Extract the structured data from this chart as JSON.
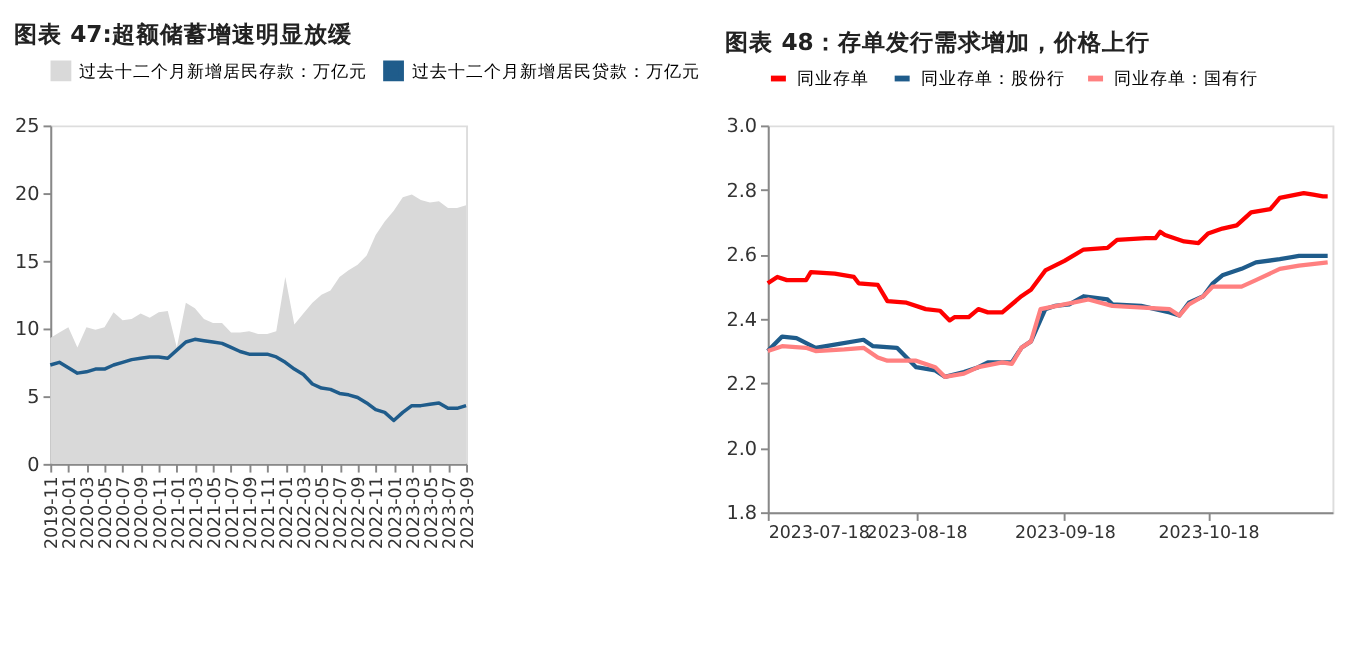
{
  "chart_data": [
    {
      "type": "area",
      "title": "图表 47:超额储蓄增速明显放缓",
      "categories": [
        "2019-11",
        null,
        "2020-01",
        null,
        "2020-03",
        null,
        "2020-05",
        null,
        "2020-07",
        null,
        "2020-09",
        null,
        "2020-11",
        null,
        "2021-01",
        null,
        "2021-03",
        null,
        "2021-05",
        null,
        "2021-07",
        null,
        "2021-09",
        null,
        "2021-11",
        null,
        "2022-01",
        null,
        "2022-03",
        null,
        "2022-05",
        null,
        "2022-07",
        null,
        "2022-09",
        null,
        "2022-11",
        null,
        "2023-01",
        null,
        "2023-03",
        null,
        "2023-05",
        null,
        "2023-07",
        null,
        "2023-09"
      ],
      "series": [
        {
          "name": "过去十二个月新增居民存款：万亿元",
          "type": "area",
          "color": "#d9d9d9",
          "values": [
            9.3,
            9.7,
            10.1,
            8.6,
            10.1,
            9.9,
            10.1,
            11.2,
            10.6,
            10.7,
            11.1,
            10.8,
            11.2,
            11.3,
            8.6,
            11.9,
            11.5,
            10.7,
            10.4,
            10.4,
            9.7,
            9.7,
            9.8,
            9.6,
            9.6,
            9.8,
            13.8,
            10.3,
            11.1,
            11.9,
            12.5,
            12.8,
            13.8,
            14.3,
            14.7,
            15.4,
            16.9,
            17.9,
            18.7,
            19.7,
            19.9,
            19.5,
            19.3,
            19.4,
            18.9,
            18.9,
            19.1
          ]
        },
        {
          "name": "过去十二个月新增居民贷款：万亿元",
          "type": "line",
          "color": "#1f5c8b",
          "values": [
            7.3,
            7.5,
            7.1,
            6.7,
            6.8,
            7.0,
            7.0,
            7.3,
            7.5,
            7.7,
            7.8,
            7.9,
            7.9,
            7.8,
            8.4,
            9.0,
            9.2,
            9.1,
            9.0,
            8.9,
            8.6,
            8.3,
            8.1,
            8.1,
            8.1,
            7.9,
            7.5,
            7.0,
            6.6,
            5.9,
            5.6,
            5.5,
            5.2,
            5.1,
            4.9,
            4.5,
            4.0,
            3.8,
            3.2,
            3.8,
            4.3,
            4.3,
            4.4,
            4.5,
            4.1,
            4.1,
            4.3
          ]
        }
      ],
      "ylim": [
        0,
        25
      ],
      "yticks": [
        0,
        5,
        10,
        15,
        20,
        25
      ],
      "grid": false,
      "legend": "top"
    },
    {
      "type": "line",
      "title": "图表 48：存单发行需求增加，价格上行",
      "series": [
        {
          "name": "同业存单",
          "color": "#ff0000",
          "x": [
            "2023-07-18",
            "2023-07-20",
            "2023-07-22",
            "2023-07-26",
            "2023-07-27",
            "2023-08-01",
            "2023-08-05",
            "2023-08-06",
            "2023-08-10",
            "2023-08-12",
            "2023-08-16",
            "2023-08-20",
            "2023-08-23",
            "2023-08-25",
            "2023-08-26",
            "2023-08-29",
            "2023-08-31",
            "2023-09-02",
            "2023-09-05",
            "2023-09-09",
            "2023-09-11",
            "2023-09-14",
            "2023-09-18",
            "2023-09-22",
            "2023-09-27",
            "2023-09-29",
            "2023-10-05",
            "2023-10-07",
            "2023-10-08",
            "2023-10-09",
            "2023-10-13",
            "2023-10-16",
            "2023-10-18",
            "2023-10-21",
            "2023-10-24",
            "2023-10-27",
            "2023-10-31",
            "2023-11-02",
            "2023-11-07",
            "2023-11-09",
            "2023-11-11",
            "2023-11-12"
          ],
          "values": [
            2.51,
            2.53,
            2.52,
            2.52,
            2.545,
            2.54,
            2.53,
            2.51,
            2.505,
            2.455,
            2.45,
            2.43,
            2.425,
            2.395,
            2.405,
            2.405,
            2.43,
            2.42,
            2.42,
            2.47,
            2.49,
            2.55,
            2.58,
            2.615,
            2.62,
            2.645,
            2.65,
            2.65,
            2.67,
            2.66,
            2.64,
            2.635,
            2.665,
            2.68,
            2.69,
            2.73,
            2.74,
            2.775,
            2.79,
            2.785,
            2.78,
            2.78
          ]
        },
        {
          "name": "同业存单：股份行",
          "color": "#1f5c8b",
          "x": [
            "2023-07-18",
            "2023-07-21",
            "2023-07-24",
            "2023-07-28",
            "2023-08-01",
            "2023-08-07",
            "2023-08-09",
            "2023-08-14",
            "2023-08-18",
            "2023-08-22",
            "2023-08-24",
            "2023-08-28",
            "2023-08-31",
            "2023-09-02",
            "2023-09-07",
            "2023-09-09",
            "2023-09-11",
            "2023-09-14",
            "2023-09-16",
            "2023-09-19",
            "2023-09-22",
            "2023-09-27",
            "2023-09-28",
            "2023-10-04",
            "2023-10-10",
            "2023-10-12",
            "2023-10-14",
            "2023-10-17",
            "2023-10-19",
            "2023-10-21",
            "2023-10-25",
            "2023-10-28",
            "2023-11-02",
            "2023-11-06",
            "2023-11-12"
          ],
          "values": [
            2.3,
            2.345,
            2.34,
            2.31,
            2.32,
            2.335,
            2.315,
            2.31,
            2.25,
            2.24,
            2.22,
            2.235,
            2.25,
            2.265,
            2.265,
            2.31,
            2.33,
            2.43,
            2.44,
            2.445,
            2.47,
            2.46,
            2.445,
            2.44,
            2.42,
            2.41,
            2.45,
            2.47,
            2.51,
            2.535,
            2.555,
            2.575,
            2.585,
            2.595,
            2.595
          ]
        },
        {
          "name": "同业存单：国有行",
          "color": "#ff8080",
          "x": [
            "2023-07-18",
            "2023-07-21",
            "2023-07-26",
            "2023-07-28",
            "2023-08-03",
            "2023-08-07",
            "2023-08-10",
            "2023-08-12",
            "2023-08-18",
            "2023-08-22",
            "2023-08-24",
            "2023-08-28",
            "2023-08-31",
            "2023-09-05",
            "2023-09-07",
            "2023-09-09",
            "2023-09-11",
            "2023-09-13",
            "2023-09-18",
            "2023-09-23",
            "2023-09-28",
            "2023-10-10",
            "2023-10-12",
            "2023-10-14",
            "2023-10-17",
            "2023-10-19",
            "2023-10-25",
            "2023-10-28",
            "2023-11-02",
            "2023-11-06",
            "2023-11-12"
          ],
          "values": [
            2.3,
            2.315,
            2.31,
            2.3,
            2.305,
            2.31,
            2.28,
            2.27,
            2.27,
            2.25,
            2.22,
            2.23,
            2.25,
            2.265,
            2.26,
            2.31,
            2.33,
            2.43,
            2.445,
            2.46,
            2.44,
            2.43,
            2.41,
            2.445,
            2.47,
            2.5,
            2.5,
            2.52,
            2.555,
            2.565,
            2.575
          ]
        }
      ],
      "xlim": [
        "2023-07-18",
        "2023-11-13"
      ],
      "xticks": [
        "2023-07-18",
        "2023-08-18",
        "2023-09-18",
        "2023-10-18"
      ],
      "ylim": [
        1.8,
        3.0
      ],
      "yticks": [
        1.8,
        {
          "value": 2,
          "label": "2.0"
        },
        2.2,
        2.4,
        2.6,
        2.8,
        {
          "value": 3,
          "label": "3.0"
        }
      ],
      "grid": false,
      "legend": "top",
      "line_style": "solid"
    }
  ]
}
